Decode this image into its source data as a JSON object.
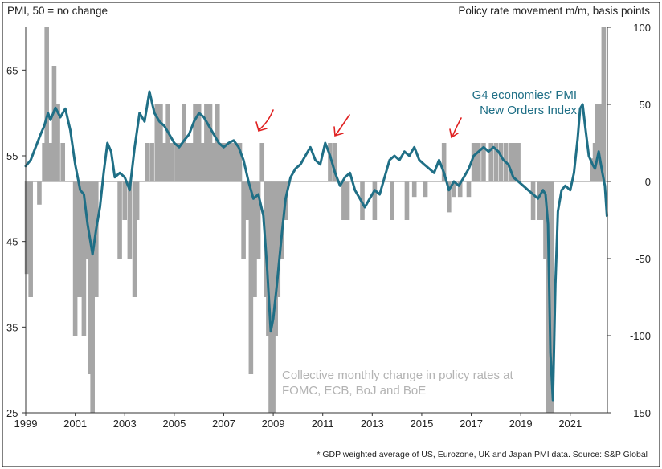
{
  "chart_data": {
    "type": "bar+line",
    "left_axis_title": "PMI, 50 = no change",
    "right_axis_title": "Policy rate movement m/m, basis points",
    "left_ylim": [
      25,
      70
    ],
    "right_ylim": [
      -150,
      100
    ],
    "left_ticks": [
      25,
      35,
      45,
      55,
      65
    ],
    "right_ticks": [
      -150,
      -100,
      -50,
      0,
      50,
      100
    ],
    "x_ticks": [
      1999,
      2001,
      2003,
      2005,
      2007,
      2009,
      2011,
      2013,
      2015,
      2017,
      2019,
      2021
    ],
    "xlim": [
      1999.0,
      2022.5
    ],
    "line_series": {
      "name_line1": "G4 economies' PMI",
      "name_line2": "New Orders Index",
      "color": "#1f6f86",
      "points": [
        [
          1999.0,
          53.8
        ],
        [
          1999.2,
          54.5
        ],
        [
          1999.4,
          56.0
        ],
        [
          1999.6,
          57.5
        ],
        [
          1999.75,
          58.5
        ],
        [
          1999.9,
          60.0
        ],
        [
          2000.0,
          59.2
        ],
        [
          2000.2,
          60.6
        ],
        [
          2000.4,
          59.5
        ],
        [
          2000.6,
          60.5
        ],
        [
          2000.8,
          58.0
        ],
        [
          2001.0,
          54.0
        ],
        [
          2001.2,
          51.0
        ],
        [
          2001.35,
          50.5
        ],
        [
          2001.5,
          47.0
        ],
        [
          2001.7,
          43.5
        ],
        [
          2001.85,
          46.5
        ],
        [
          2002.0,
          49.0
        ],
        [
          2002.15,
          53.0
        ],
        [
          2002.3,
          56.5
        ],
        [
          2002.45,
          55.5
        ],
        [
          2002.6,
          52.5
        ],
        [
          2002.8,
          53.0
        ],
        [
          2003.0,
          52.5
        ],
        [
          2003.2,
          51.0
        ],
        [
          2003.4,
          56.0
        ],
        [
          2003.6,
          60.0
        ],
        [
          2003.8,
          59.0
        ],
        [
          2004.0,
          62.5
        ],
        [
          2004.2,
          60.0
        ],
        [
          2004.4,
          59.0
        ],
        [
          2004.6,
          58.5
        ],
        [
          2004.8,
          57.5
        ],
        [
          2005.0,
          56.5
        ],
        [
          2005.2,
          56.0
        ],
        [
          2005.4,
          56.8
        ],
        [
          2005.6,
          57.5
        ],
        [
          2005.8,
          59.0
        ],
        [
          2006.0,
          60.0
        ],
        [
          2006.2,
          59.5
        ],
        [
          2006.4,
          58.5
        ],
        [
          2006.6,
          57.5
        ],
        [
          2006.8,
          56.5
        ],
        [
          2007.0,
          56.0
        ],
        [
          2007.2,
          56.5
        ],
        [
          2007.4,
          56.8
        ],
        [
          2007.6,
          56.0
        ],
        [
          2007.8,
          54.5
        ],
        [
          2008.0,
          52.0
        ],
        [
          2008.2,
          50.0
        ],
        [
          2008.4,
          50.5
        ],
        [
          2008.6,
          48.0
        ],
        [
          2008.75,
          42.0
        ],
        [
          2008.9,
          34.5
        ],
        [
          2009.0,
          36.0
        ],
        [
          2009.15,
          40.0
        ],
        [
          2009.35,
          46.0
        ],
        [
          2009.5,
          50.0
        ],
        [
          2009.7,
          52.5
        ],
        [
          2009.9,
          53.5
        ],
        [
          2010.1,
          54.0
        ],
        [
          2010.3,
          55.0
        ],
        [
          2010.5,
          56.0
        ],
        [
          2010.7,
          54.5
        ],
        [
          2010.9,
          54.0
        ],
        [
          2011.1,
          56.5
        ],
        [
          2011.3,
          55.0
        ],
        [
          2011.5,
          53.0
        ],
        [
          2011.7,
          51.5
        ],
        [
          2011.9,
          52.5
        ],
        [
          2012.1,
          53.0
        ],
        [
          2012.3,
          51.0
        ],
        [
          2012.5,
          50.0
        ],
        [
          2012.7,
          49.0
        ],
        [
          2012.9,
          50.0
        ],
        [
          2013.1,
          51.0
        ],
        [
          2013.3,
          50.5
        ],
        [
          2013.5,
          52.5
        ],
        [
          2013.7,
          54.5
        ],
        [
          2013.9,
          55.0
        ],
        [
          2014.1,
          54.5
        ],
        [
          2014.3,
          55.5
        ],
        [
          2014.5,
          55.0
        ],
        [
          2014.7,
          56.0
        ],
        [
          2014.9,
          54.5
        ],
        [
          2015.1,
          54.0
        ],
        [
          2015.3,
          53.5
        ],
        [
          2015.5,
          53.0
        ],
        [
          2015.7,
          54.5
        ],
        [
          2015.9,
          53.0
        ],
        [
          2016.1,
          51.0
        ],
        [
          2016.3,
          52.0
        ],
        [
          2016.5,
          51.5
        ],
        [
          2016.7,
          52.5
        ],
        [
          2016.9,
          53.5
        ],
        [
          2017.1,
          55.0
        ],
        [
          2017.3,
          55.5
        ],
        [
          2017.5,
          56.0
        ],
        [
          2017.7,
          55.5
        ],
        [
          2017.9,
          56.0
        ],
        [
          2018.1,
          55.5
        ],
        [
          2018.3,
          54.5
        ],
        [
          2018.5,
          54.0
        ],
        [
          2018.7,
          52.5
        ],
        [
          2018.9,
          52.0
        ],
        [
          2019.1,
          51.5
        ],
        [
          2019.3,
          51.0
        ],
        [
          2019.5,
          50.5
        ],
        [
          2019.7,
          50.0
        ],
        [
          2019.9,
          51.0
        ],
        [
          2020.0,
          50.5
        ],
        [
          2020.1,
          47.0
        ],
        [
          2020.2,
          32.0
        ],
        [
          2020.3,
          26.5
        ],
        [
          2020.4,
          40.0
        ],
        [
          2020.5,
          48.5
        ],
        [
          2020.65,
          51.0
        ],
        [
          2020.8,
          51.5
        ],
        [
          2021.0,
          51.0
        ],
        [
          2021.15,
          53.0
        ],
        [
          2021.3,
          57.0
        ],
        [
          2021.4,
          60.5
        ],
        [
          2021.5,
          61.0
        ],
        [
          2021.6,
          58.5
        ],
        [
          2021.75,
          55.0
        ],
        [
          2021.9,
          54.0
        ],
        [
          2022.0,
          53.5
        ],
        [
          2022.15,
          55.5
        ],
        [
          2022.3,
          53.0
        ],
        [
          2022.4,
          51.5
        ],
        [
          2022.48,
          48.0
        ]
      ]
    },
    "bar_series": {
      "caption_line1": "Collective monthly change in policy rates at",
      "caption_line2": "FOMC, ECB, BoJ and BoE",
      "color": "#a6a6a6",
      "bars": [
        [
          1999.05,
          -60
        ],
        [
          1999.2,
          -75
        ],
        [
          1999.55,
          -15
        ],
        [
          1999.75,
          25
        ],
        [
          1999.85,
          100
        ],
        [
          2000.0,
          25
        ],
        [
          2000.15,
          75
        ],
        [
          2000.3,
          50
        ],
        [
          2000.5,
          25
        ],
        [
          2001.0,
          -100
        ],
        [
          2001.1,
          -75
        ],
        [
          2001.2,
          -75
        ],
        [
          2001.35,
          -100
        ],
        [
          2001.5,
          -50
        ],
        [
          2001.6,
          -125
        ],
        [
          2001.7,
          -150
        ],
        [
          2001.85,
          -75
        ],
        [
          2002.8,
          -50
        ],
        [
          2003.0,
          -25
        ],
        [
          2003.2,
          -50
        ],
        [
          2003.4,
          -75
        ],
        [
          2003.5,
          -25
        ],
        [
          2003.9,
          25
        ],
        [
          2004.1,
          25
        ],
        [
          2004.3,
          50
        ],
        [
          2004.45,
          50
        ],
        [
          2004.6,
          25
        ],
        [
          2004.75,
          50
        ],
        [
          2004.9,
          25
        ],
        [
          2005.1,
          25
        ],
        [
          2005.25,
          25
        ],
        [
          2005.4,
          50
        ],
        [
          2005.55,
          25
        ],
        [
          2005.7,
          25
        ],
        [
          2005.85,
          50
        ],
        [
          2006.0,
          50
        ],
        [
          2006.15,
          25
        ],
        [
          2006.3,
          50
        ],
        [
          2006.45,
          50
        ],
        [
          2006.6,
          25
        ],
        [
          2006.75,
          50
        ],
        [
          2006.9,
          25
        ],
        [
          2007.05,
          25
        ],
        [
          2007.2,
          25
        ],
        [
          2007.35,
          25
        ],
        [
          2007.5,
          25
        ],
        [
          2007.65,
          25
        ],
        [
          2007.8,
          -50
        ],
        [
          2007.95,
          -25
        ],
        [
          2008.1,
          -125
        ],
        [
          2008.25,
          -75
        ],
        [
          2008.4,
          -50
        ],
        [
          2008.55,
          25
        ],
        [
          2008.7,
          -75
        ],
        [
          2008.8,
          -100
        ],
        [
          2008.9,
          -150
        ],
        [
          2009.0,
          -150
        ],
        [
          2009.1,
          -100
        ],
        [
          2009.2,
          -75
        ],
        [
          2009.35,
          -50
        ],
        [
          2009.5,
          -25
        ],
        [
          2011.3,
          25
        ],
        [
          2011.5,
          25
        ],
        [
          2011.85,
          -25
        ],
        [
          2012.0,
          -25
        ],
        [
          2012.6,
          -25
        ],
        [
          2013.1,
          -25
        ],
        [
          2013.8,
          -25
        ],
        [
          2014.4,
          -25
        ],
        [
          2014.7,
          -10
        ],
        [
          2015.15,
          -10
        ],
        [
          2015.9,
          25
        ],
        [
          2016.1,
          -20
        ],
        [
          2016.3,
          -10
        ],
        [
          2016.55,
          -10
        ],
        [
          2016.9,
          -10
        ],
        [
          2017.1,
          25
        ],
        [
          2017.3,
          25
        ],
        [
          2017.5,
          25
        ],
        [
          2017.8,
          25
        ],
        [
          2018.0,
          25
        ],
        [
          2018.2,
          25
        ],
        [
          2018.4,
          25
        ],
        [
          2018.6,
          25
        ],
        [
          2018.75,
          25
        ],
        [
          2018.9,
          25
        ],
        [
          2019.5,
          -25
        ],
        [
          2019.75,
          -25
        ],
        [
          2019.9,
          -25
        ],
        [
          2020.0,
          -50
        ],
        [
          2020.1,
          -150
        ],
        [
          2020.25,
          -150
        ],
        [
          2021.9,
          15
        ],
        [
          2022.0,
          25
        ],
        [
          2022.1,
          50
        ],
        [
          2022.25,
          50
        ],
        [
          2022.35,
          100
        ]
      ]
    },
    "footnote": "* GDP weighted average of US, Eurozone, UK and Japan PMI data. Source: S&P Global",
    "annotations": "three hand-drawn red arrows pointing down-left near 2008, 2011 and 2015 peaks"
  }
}
